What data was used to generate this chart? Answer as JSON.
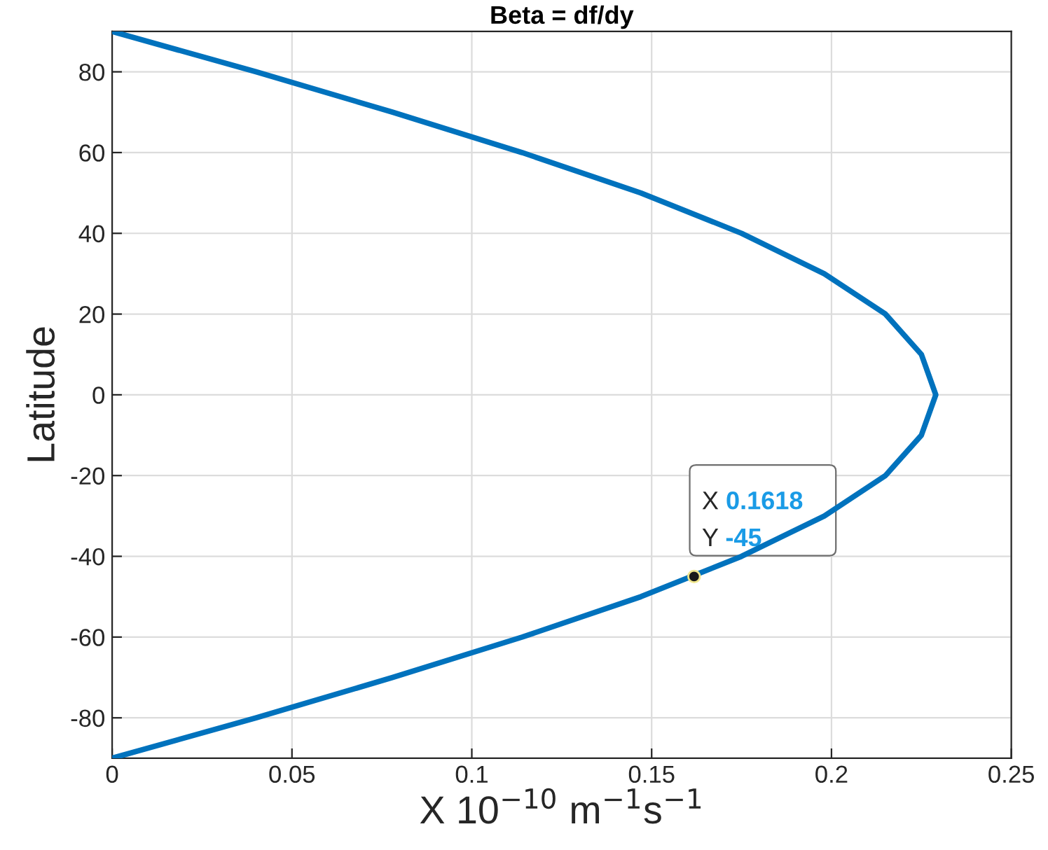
{
  "chart_data": {
    "type": "line",
    "title": "Beta = df/dy",
    "xlabel": "X 10$^{−10}$ m$^{−1}$s$^{−1}$",
    "ylabel": "Latitude",
    "series": [
      {
        "color": "#0072bd",
        "x": [
          0,
          0.04,
          0.078,
          0.114,
          0.147,
          0.175,
          0.198,
          0.215,
          0.225,
          0.229,
          0.225,
          0.215,
          0.198,
          0.175,
          0.147,
          0.114,
          0.078,
          0.04,
          0
        ],
        "values": [
          -90,
          -80,
          -70,
          -60,
          -50,
          -40,
          -30,
          -20,
          -10,
          0,
          10,
          20,
          30,
          40,
          50,
          60,
          70,
          80,
          90
        ]
      }
    ],
    "xlim": [
      0,
      0.25
    ],
    "xticks": [
      0,
      0.05,
      0.1,
      0.15,
      0.2,
      0.25
    ],
    "ylim": [
      -90,
      90
    ],
    "yticks": [
      -80,
      -60,
      -40,
      -20,
      0,
      20,
      40,
      60,
      80
    ],
    "grid": true,
    "marker": "none",
    "line_style": "solid",
    "legend": false,
    "annotations": [
      {
        "text": "X 0.1618\nY -45",
        "x": 0.1618,
        "y": -45
      }
    ]
  }
}
